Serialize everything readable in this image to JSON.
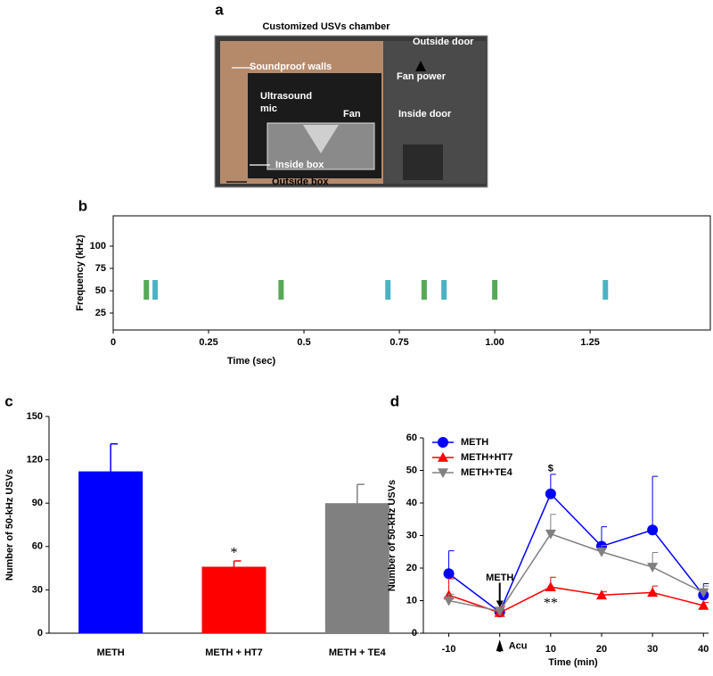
{
  "chart_data": [
    {
      "type": "image",
      "panel_label": "a",
      "title": "Customized USVs chamber",
      "annotations": [
        "Outside  door",
        "Soundproof walls",
        "Fan power",
        "Ultrasound",
        "mic",
        "Fan",
        "Inside door",
        "Inside box",
        "Outside box"
      ]
    },
    {
      "type": "spectrogram",
      "panel_label": "b",
      "xlabel": "Time (sec)",
      "ylabel": "Frequency (kHz)",
      "x": [
        0.087,
        0.11,
        0.44,
        0.72,
        0.815,
        0.867,
        1.0,
        1.29
      ],
      "values": [
        50,
        50,
        50,
        50,
        50,
        50,
        50,
        50
      ],
      "xlim": [
        0,
        1.565
      ],
      "xticks": [
        0,
        0.25,
        0.5,
        0.75,
        {
          "value": 1,
          "label": "1.00"
        },
        1.25
      ],
      "ylim": [
        6,
        134
      ],
      "yticks": [
        25,
        50,
        75,
        100
      ]
    },
    {
      "type": "bar",
      "panel_label": "c",
      "ylabel": "Number of 50-kHz USVs",
      "categories": [
        "METH",
        "METH + HT7",
        "METH + TE4"
      ],
      "values": [
        112,
        46,
        90
      ],
      "errors": [
        19,
        4,
        13
      ],
      "colors": [
        "#0000ff",
        "#ff0000",
        "#808080"
      ],
      "significance_labels": [
        null,
        "*",
        null
      ],
      "ylim": [
        0,
        150
      ],
      "yticks": [
        0,
        30,
        60,
        90,
        120,
        150
      ]
    },
    {
      "type": "line",
      "panel_label": "d",
      "xlabel": "Time (min)",
      "ylabel": "Number of 50-kHz USVs",
      "x": [
        -10,
        0,
        10,
        20,
        30,
        40
      ],
      "xlim": [
        -15,
        41
      ],
      "xticks": [
        -10,
        0,
        10,
        20,
        30,
        40
      ],
      "ylim": [
        0,
        60
      ],
      "yticks": [
        0,
        10,
        20,
        30,
        40,
        50,
        60
      ],
      "legend": "upper left",
      "series": [
        {
          "name": "METH",
          "color": "#0000ff",
          "marker": "circle",
          "values": [
            18.3,
            6.5,
            42.8,
            26.7,
            31.7,
            11.7
          ],
          "errors": [
            7,
            2.5,
            6,
            6,
            16.5,
            3.5
          ]
        },
        {
          "name": "METH+HT7",
          "color": "#ff0000",
          "marker": "triangle-up",
          "values": [
            11.7,
            6.3,
            14.2,
            11.7,
            12.5,
            8.5
          ],
          "errors": [
            5,
            2,
            3,
            1,
            2,
            1
          ]
        },
        {
          "name": "METH+TE4",
          "color": "#808080",
          "marker": "triangle-down",
          "values": [
            10,
            6.8,
            30.5,
            25,
            20.3,
            12.5
          ],
          "errors": [
            2,
            2,
            6,
            2,
            4.5,
            2
          ]
        }
      ],
      "annotations": [
        {
          "text": "METH",
          "x": 0,
          "y": 17
        },
        {
          "text": "Acu",
          "x": 0,
          "y": -4
        },
        {
          "text": "$",
          "x": 10,
          "y": 50.5
        },
        {
          "text": "**",
          "x": 10,
          "y": 9
        }
      ]
    }
  ]
}
